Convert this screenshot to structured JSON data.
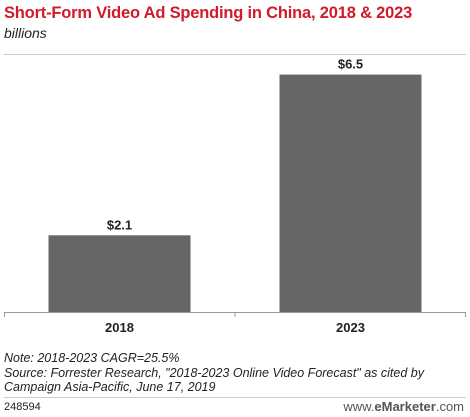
{
  "header": {
    "title": "Short-Form Video Ad Spending in China, 2018 & 2023",
    "subtitle": "billions"
  },
  "chart_data": {
    "type": "bar",
    "categories": [
      "2018",
      "2023"
    ],
    "values": [
      2.1,
      6.5
    ],
    "value_labels": [
      "$2.1",
      "$6.5"
    ],
    "title": "Short-Form Video Ad Spending in China, 2018 & 2023",
    "subtitle": "billions",
    "ylim": [
      0,
      7.2
    ],
    "grid": false,
    "bar_color": "#666666"
  },
  "notes": {
    "note": "Note: 2018-2023 CAGR=25.5%",
    "source": "Source: Forrester Research, \"2018-2023 Online Video Forecast\" as cited by Campaign Asia-Pacific, June 17, 2019"
  },
  "footer": {
    "id": "248594",
    "logo_prefix": "www.",
    "logo_brand": "eMarketer",
    "logo_suffix": ".com"
  }
}
